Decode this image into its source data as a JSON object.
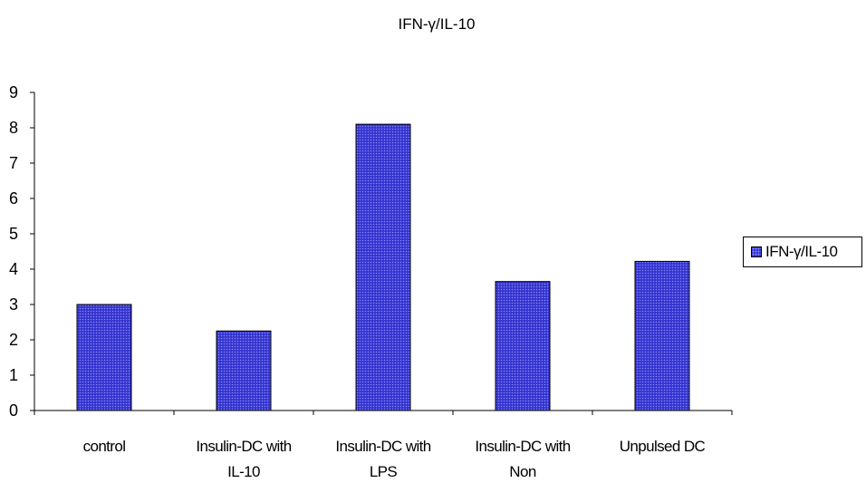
{
  "chart_data": {
    "type": "bar",
    "title": "IFN-γ/IL-10",
    "xlabel": "",
    "ylabel": "",
    "categories": [
      [
        "control"
      ],
      [
        "Insulin-DC with",
        "IL-10"
      ],
      [
        "Insulin-DC with",
        "LPS"
      ],
      [
        "Insulin-DC with",
        "Non"
      ],
      [
        "Unpulsed DC"
      ]
    ],
    "series": [
      {
        "name": "IFN-γ/IL-10",
        "values": [
          3.0,
          2.25,
          8.1,
          3.65,
          4.22
        ]
      }
    ],
    "ylim": [
      0,
      9
    ],
    "yticks": [
      0,
      1,
      2,
      3,
      4,
      5,
      6,
      7,
      8,
      9
    ],
    "grid": false,
    "legend": "right",
    "colors": {
      "bar": "#3333cc",
      "bar_dot": "#8888ff",
      "axis": "#000000"
    }
  }
}
